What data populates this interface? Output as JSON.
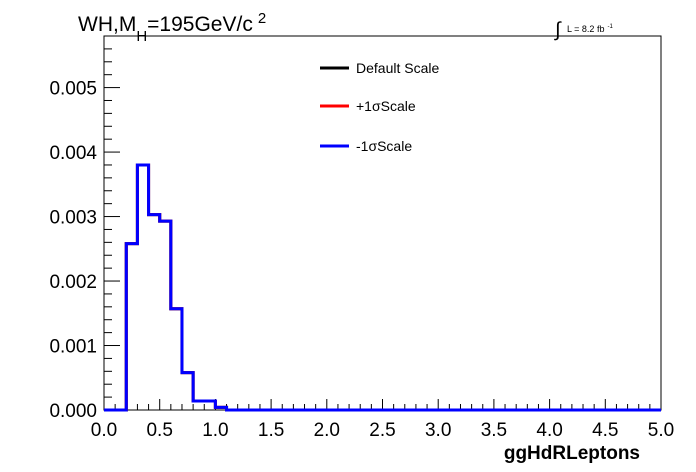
{
  "chart_data": {
    "type": "histogram-step",
    "title": {
      "main": "WH,M",
      "subscript": "H",
      "rest": "=195GeV/c",
      "superscript": "2"
    },
    "luminosity": {
      "symbol": "∫",
      "text": "L = 8.2 fb",
      "superscript": "-1"
    },
    "xlabel": "ggHdRLeptons",
    "ylabel": "",
    "xlim": [
      0.0,
      5.0
    ],
    "ylim": [
      0.0,
      0.0058
    ],
    "x_ticks": [
      "0.0",
      "0.5",
      "1.0",
      "1.5",
      "2.0",
      "2.5",
      "3.0",
      "3.5",
      "4.0",
      "4.5",
      "5.0"
    ],
    "y_ticks": [
      "0.000",
      "0.001",
      "0.002",
      "0.003",
      "0.004",
      "0.005"
    ],
    "bin_edges": [
      0.0,
      0.1,
      0.2,
      0.3,
      0.4,
      0.5,
      0.6,
      0.7,
      0.8,
      0.9,
      1.0,
      1.1,
      1.2,
      5.0
    ],
    "series": [
      {
        "name": "Default Scale",
        "color": "#000000",
        "values": [
          0.0,
          0.0,
          0.00258,
          0.0038,
          0.00303,
          0.00293,
          0.00157,
          0.00058,
          0.00014,
          0.00014,
          4e-05,
          0.0,
          0.0
        ]
      },
      {
        "name": "+1σScale",
        "color": "#ff0000",
        "values": [
          0.0,
          0.0,
          0.00258,
          0.0038,
          0.00303,
          0.00293,
          0.00157,
          0.00058,
          0.00014,
          0.00014,
          4e-05,
          0.0,
          0.0
        ]
      },
      {
        "name": "-1σScale",
        "color": "#0000ff",
        "values": [
          0.0,
          0.0,
          0.00258,
          0.0038,
          0.00303,
          0.00293,
          0.00157,
          0.00058,
          0.00014,
          0.00014,
          4e-05,
          0.0,
          0.0
        ]
      }
    ],
    "legend_position": "top-center",
    "grid": false
  }
}
